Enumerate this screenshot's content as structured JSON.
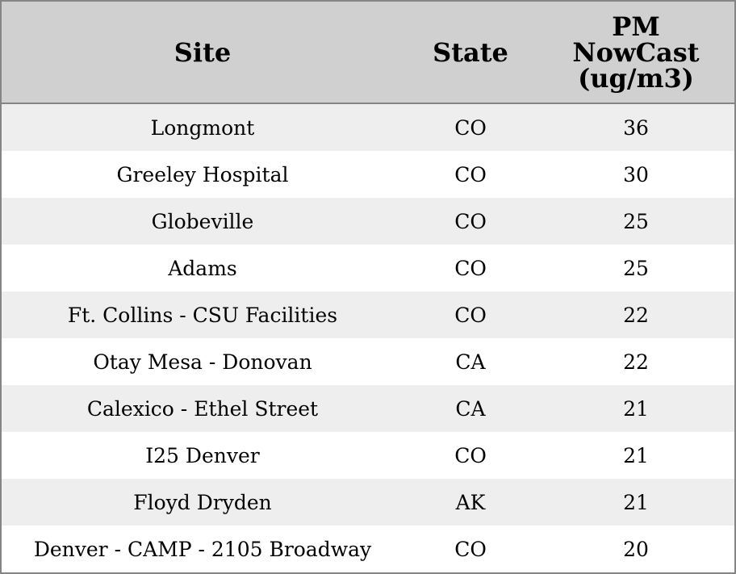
{
  "table": {
    "header": [
      "Site",
      "State",
      "PM NowCast (ug/m3)"
    ],
    "rows": [
      [
        "Longmont",
        "CO",
        36
      ],
      [
        "Greeley Hospital",
        "CO",
        30
      ],
      [
        "Globeville",
        "CO",
        25
      ],
      [
        "Adams",
        "CO",
        25
      ],
      [
        "Ft. Collins - CSU Facilities",
        "CO",
        22
      ],
      [
        "Otay Mesa - Donovan",
        "CA",
        22
      ],
      [
        "Calexico - Ethel Street",
        "CA",
        21
      ],
      [
        "I25 Denver",
        "CO",
        21
      ],
      [
        "Floyd Dryden",
        "AK",
        21
      ],
      [
        "Denver - CAMP - 2105 Broadway",
        "CO",
        20
      ]
    ]
  }
}
